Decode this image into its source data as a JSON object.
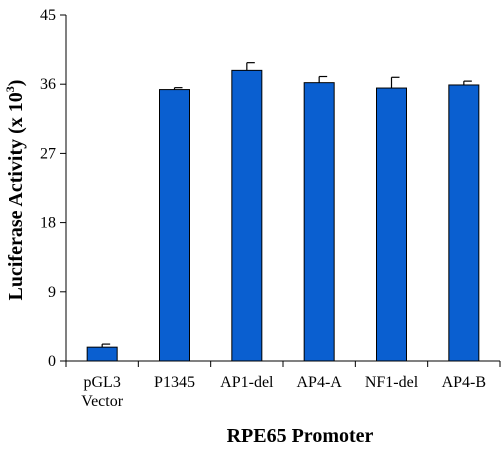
{
  "chart_data": {
    "type": "bar",
    "categories": [
      [
        "pGL3",
        "Vector"
      ],
      [
        "P1345"
      ],
      [
        "AP1-del"
      ],
      [
        "AP4-A"
      ],
      [
        "NF1-del"
      ],
      [
        "AP4-B"
      ]
    ],
    "values": [
      1.8,
      35.3,
      37.8,
      36.2,
      35.5,
      35.9
    ],
    "errors": [
      0.4,
      0.25,
      1.0,
      0.8,
      1.4,
      0.5
    ],
    "xlabel": "RPE65 Promoter",
    "ylabel": "Luciferase Activity (x 10",
    "ylabel_superscript": "3",
    "ylabel_suffix": ")",
    "ylim": [
      0,
      45
    ],
    "yticks": [
      0,
      9,
      18,
      27,
      36,
      45
    ],
    "grid": false,
    "legend": "none",
    "bar_color": "#0a5fd0",
    "bar_edge_color": "#000000"
  }
}
